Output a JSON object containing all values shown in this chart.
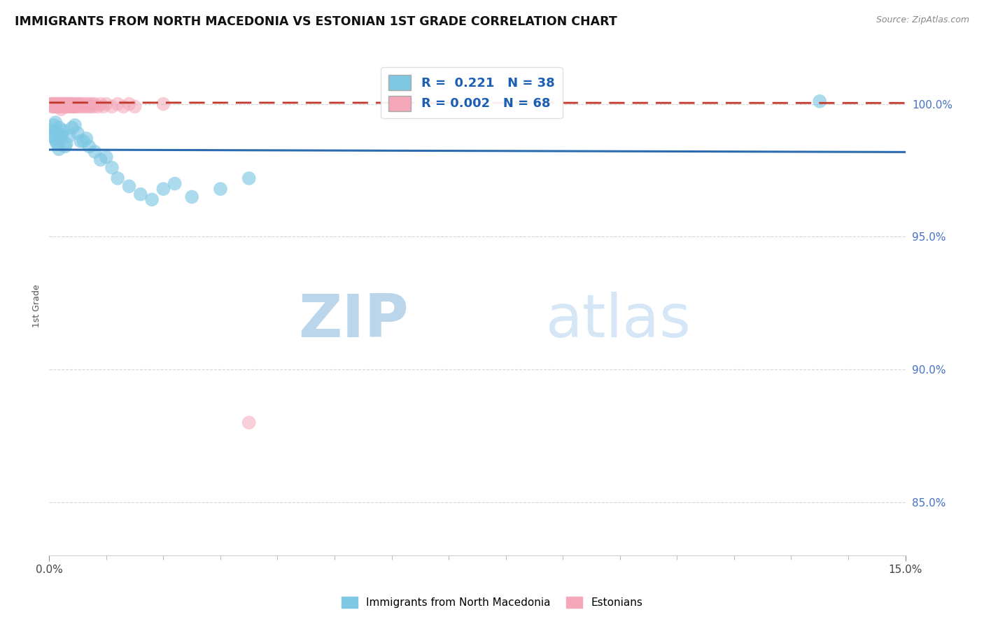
{
  "title": "IMMIGRANTS FROM NORTH MACEDONIA VS ESTONIAN 1ST GRADE CORRELATION CHART",
  "source": "Source: ZipAtlas.com",
  "xlabel": "",
  "ylabel": "1st Grade",
  "xlim": [
    0.0,
    15.0
  ],
  "ylim": [
    83.0,
    101.8
  ],
  "xtick_labels": [
    "0.0%",
    "15.0%"
  ],
  "ytick_positions": [
    85.0,
    90.0,
    95.0,
    100.0
  ],
  "ytick_labels": [
    "85.0%",
    "90.0%",
    "95.0%",
    "100.0%"
  ],
  "blue_color": "#7ec8e3",
  "pink_color": "#f4a7b9",
  "blue_line_color": "#2b6cb0",
  "pink_line_color": "#c0392b",
  "r_blue": 0.221,
  "n_blue": 38,
  "r_pink": 0.002,
  "n_pink": 68,
  "blue_points_x": [
    0.05,
    0.08,
    0.1,
    0.12,
    0.15,
    0.18,
    0.2,
    0.25,
    0.3,
    0.35,
    0.4,
    0.5,
    0.6,
    0.7,
    0.8,
    0.9,
    1.0,
    1.1,
    1.2,
    1.4,
    1.6,
    1.8,
    2.0,
    2.2,
    2.5,
    3.0,
    3.5,
    0.06,
    0.09,
    0.11,
    0.14,
    0.17,
    0.22,
    0.28,
    0.45,
    0.65,
    13.5,
    0.55
  ],
  "blue_points_y": [
    98.8,
    99.2,
    99.0,
    98.6,
    98.9,
    99.1,
    98.7,
    99.0,
    98.5,
    98.8,
    99.1,
    98.9,
    98.6,
    98.4,
    98.2,
    97.9,
    98.0,
    97.6,
    97.2,
    96.9,
    96.6,
    96.4,
    96.8,
    97.0,
    96.5,
    96.8,
    97.2,
    99.0,
    98.7,
    99.3,
    98.5,
    98.3,
    98.8,
    98.4,
    99.2,
    98.7,
    100.1,
    98.6
  ],
  "pink_points_x": [
    0.03,
    0.05,
    0.07,
    0.08,
    0.1,
    0.11,
    0.12,
    0.13,
    0.15,
    0.16,
    0.18,
    0.19,
    0.2,
    0.21,
    0.22,
    0.23,
    0.25,
    0.26,
    0.27,
    0.28,
    0.3,
    0.31,
    0.32,
    0.33,
    0.35,
    0.36,
    0.38,
    0.39,
    0.4,
    0.42,
    0.43,
    0.45,
    0.46,
    0.48,
    0.5,
    0.52,
    0.55,
    0.58,
    0.6,
    0.62,
    0.65,
    0.68,
    0.7,
    0.72,
    0.75,
    0.78,
    0.8,
    0.85,
    0.9,
    0.95,
    1.0,
    1.1,
    1.2,
    1.3,
    1.4,
    1.5,
    2.0,
    0.04,
    0.06,
    0.09,
    0.14,
    0.17,
    0.24,
    0.29,
    0.37,
    0.44,
    0.53,
    3.5
  ],
  "pink_points_y": [
    100.0,
    100.0,
    99.9,
    100.0,
    100.0,
    99.9,
    100.0,
    99.9,
    100.0,
    99.9,
    100.0,
    99.9,
    100.0,
    99.8,
    100.0,
    99.9,
    100.0,
    99.9,
    100.0,
    99.9,
    100.0,
    99.9,
    100.0,
    99.9,
    100.0,
    99.9,
    100.0,
    99.9,
    100.0,
    99.9,
    100.0,
    99.9,
    100.0,
    99.9,
    100.0,
    99.9,
    100.0,
    99.9,
    100.0,
    99.9,
    100.0,
    99.9,
    100.0,
    99.9,
    100.0,
    99.9,
    100.0,
    99.9,
    100.0,
    99.9,
    100.0,
    99.9,
    100.0,
    99.9,
    100.0,
    99.9,
    100.0,
    99.9,
    100.0,
    99.9,
    100.0,
    99.9,
    100.0,
    99.9,
    100.0,
    99.9,
    100.0,
    88.0
  ],
  "background_color": "#ffffff",
  "grid_color": "#cccccc",
  "watermark_zip_color": "#b8d4e8",
  "watermark_atlas_color": "#c8dff0"
}
